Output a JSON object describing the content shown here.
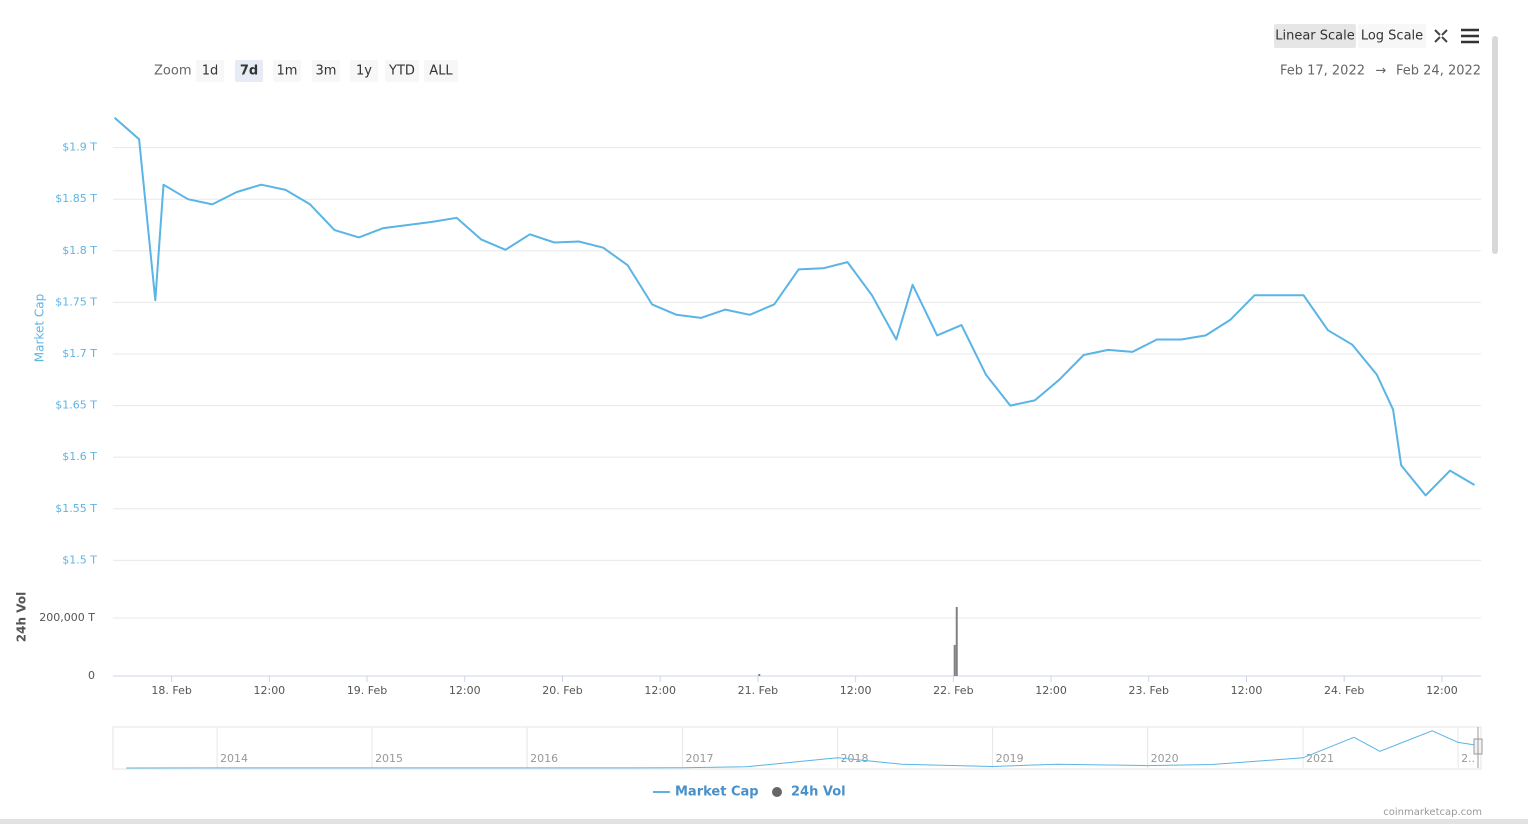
{
  "zoom": {
    "label": "Zoom",
    "buttons": [
      "1d",
      "7d",
      "1m",
      "3m",
      "1y",
      "YTD",
      "ALL"
    ],
    "selected": 1
  },
  "scale_buttons": {
    "labels": [
      "Linear Scale",
      "Log Scale"
    ],
    "selected": 0
  },
  "date_range": {
    "from": "Feb 17, 2022",
    "arrow": "→",
    "to": "Feb 24, 2022"
  },
  "credit": "coinmarketcap.com",
  "chart_data": {
    "type": "line",
    "ylabel": "Market Cap",
    "y2label": "24h Vol",
    "xlim": [
      "2022-02-17T16:48",
      "2022-02-24T16:48"
    ],
    "xticks": [
      {
        "value": "2022-02-18T00:00",
        "label": "18. Feb"
      },
      {
        "value": "2022-02-18T12:00",
        "label": "12:00"
      },
      {
        "value": "2022-02-19T00:00",
        "label": "19. Feb"
      },
      {
        "value": "2022-02-19T12:00",
        "label": "12:00"
      },
      {
        "value": "2022-02-20T00:00",
        "label": "20. Feb"
      },
      {
        "value": "2022-02-20T12:00",
        "label": "12:00"
      },
      {
        "value": "2022-02-21T00:00",
        "label": "21. Feb"
      },
      {
        "value": "2022-02-21T12:00",
        "label": "12:00"
      },
      {
        "value": "2022-02-22T00:00",
        "label": "22. Feb"
      },
      {
        "value": "2022-02-22T12:00",
        "label": "12:00"
      },
      {
        "value": "2022-02-23T00:00",
        "label": "23. Feb"
      },
      {
        "value": "2022-02-23T12:00",
        "label": "12:00"
      },
      {
        "value": "2022-02-24T00:00",
        "label": "24. Feb"
      },
      {
        "value": "2022-02-24T12:00",
        "label": "12:00"
      }
    ],
    "ylim": [
      1.48,
      1.95
    ],
    "yticks": [
      {
        "value": 1.5,
        "label": "$1.5 T"
      },
      {
        "value": 1.55,
        "label": "$1.55 T"
      },
      {
        "value": 1.6,
        "label": "$1.6 T"
      },
      {
        "value": 1.65,
        "label": "$1.65 T"
      },
      {
        "value": 1.7,
        "label": "$1.7 T"
      },
      {
        "value": 1.75,
        "label": "$1.75 T"
      },
      {
        "value": 1.8,
        "label": "$1.8 T"
      },
      {
        "value": 1.85,
        "label": "$1.85 T"
      },
      {
        "value": 1.9,
        "label": "$1.9 T"
      }
    ],
    "y2lim": [
      0,
      300000
    ],
    "y2ticks": [
      0,
      {
        "value": 200000,
        "label": "200,000 T"
      }
    ],
    "grid": true,
    "legend": "bottom",
    "series": [
      {
        "name": "Market Cap",
        "color": "#5ab4e5",
        "x": [
          "2022-02-17T17:00",
          "2022-02-17T20:00",
          "2022-02-17T22:00",
          "2022-02-17T23:00",
          "2022-02-18T02:00",
          "2022-02-18T05:00",
          "2022-02-18T08:00",
          "2022-02-18T11:00",
          "2022-02-18T14:00",
          "2022-02-18T17:00",
          "2022-02-18T20:00",
          "2022-02-18T23:00",
          "2022-02-19T02:00",
          "2022-02-19T05:00",
          "2022-02-19T08:00",
          "2022-02-19T11:00",
          "2022-02-19T14:00",
          "2022-02-19T17:00",
          "2022-02-19T20:00",
          "2022-02-19T23:00",
          "2022-02-20T02:00",
          "2022-02-20T05:00",
          "2022-02-20T08:00",
          "2022-02-20T11:00",
          "2022-02-20T14:00",
          "2022-02-20T17:00",
          "2022-02-20T20:00",
          "2022-02-20T23:00",
          "2022-02-21T02:00",
          "2022-02-21T05:00",
          "2022-02-21T08:00",
          "2022-02-21T11:00",
          "2022-02-21T14:00",
          "2022-02-21T17:00",
          "2022-02-21T19:00",
          "2022-02-21T22:00",
          "2022-02-22T01:00",
          "2022-02-22T04:00",
          "2022-02-22T07:00",
          "2022-02-22T10:00",
          "2022-02-22T13:00",
          "2022-02-22T16:00",
          "2022-02-22T19:00",
          "2022-02-22T22:00",
          "2022-02-23T01:00",
          "2022-02-23T04:00",
          "2022-02-23T07:00",
          "2022-02-23T10:00",
          "2022-02-23T13:00",
          "2022-02-23T16:00",
          "2022-02-23T19:00",
          "2022-02-23T22:00",
          "2022-02-24T01:00",
          "2022-02-24T04:00",
          "2022-02-24T06:00",
          "2022-02-24T07:00",
          "2022-02-24T10:00",
          "2022-02-24T13:00",
          "2022-02-24T16:00"
        ],
        "values": [
          1.929,
          1.908,
          1.752,
          1.864,
          1.85,
          1.845,
          1.857,
          1.864,
          1.859,
          1.845,
          1.82,
          1.813,
          1.822,
          1.825,
          1.828,
          1.832,
          1.811,
          1.801,
          1.816,
          1.808,
          1.809,
          1.803,
          1.786,
          1.748,
          1.738,
          1.735,
          1.743,
          1.738,
          1.748,
          1.782,
          1.783,
          1.789,
          1.757,
          1.714,
          1.767,
          1.718,
          1.728,
          1.68,
          1.65,
          1.655,
          1.675,
          1.699,
          1.704,
          1.702,
          1.714,
          1.714,
          1.718,
          1.733,
          1.757,
          1.757,
          1.757,
          1.723,
          1.709,
          1.68,
          1.646,
          1.592,
          1.563,
          1.587,
          1.573
        ]
      },
      {
        "name": "24h Vol",
        "color": "#808080",
        "axis": "y2",
        "x": [
          "2022-02-21T00:10",
          "2022-02-22T00:10",
          "2022-02-22T00:25"
        ],
        "values": [
          7000,
          107000,
          238000
        ]
      }
    ],
    "navigator": {
      "xlim": [
        "2013-05-01",
        "2022-02-24"
      ],
      "ylim": [
        0,
        3.2
      ],
      "xticks": [
        {
          "value": "2014-01-01",
          "label": "2014"
        },
        {
          "value": "2015-01-01",
          "label": "2015"
        },
        {
          "value": "2016-01-01",
          "label": "2016"
        },
        {
          "value": "2017-01-01",
          "label": "2017"
        },
        {
          "value": "2018-01-01",
          "label": "2018"
        },
        {
          "value": "2019-01-01",
          "label": "2019"
        },
        {
          "value": "2020-01-01",
          "label": "2020"
        },
        {
          "value": "2021-01-01",
          "label": "2021"
        },
        {
          "value": "2022-01-01",
          "label": "2.."
        }
      ],
      "x": [
        "2013-06-01",
        "2014-01-01",
        "2015-01-01",
        "2016-01-01",
        "2017-01-01",
        "2017-06-01",
        "2018-01-01",
        "2018-06-01",
        "2019-01-01",
        "2019-06-01",
        "2020-01-01",
        "2020-06-01",
        "2021-01-01",
        "2021-05-01",
        "2021-07-01",
        "2021-11-01",
        "2022-01-01",
        "2022-02-20"
      ],
      "values": [
        0.001,
        0.01,
        0.005,
        0.007,
        0.018,
        0.1,
        0.8,
        0.3,
        0.12,
        0.3,
        0.19,
        0.27,
        0.8,
        2.4,
        1.3,
        2.9,
        2.0,
        1.75
      ]
    }
  }
}
